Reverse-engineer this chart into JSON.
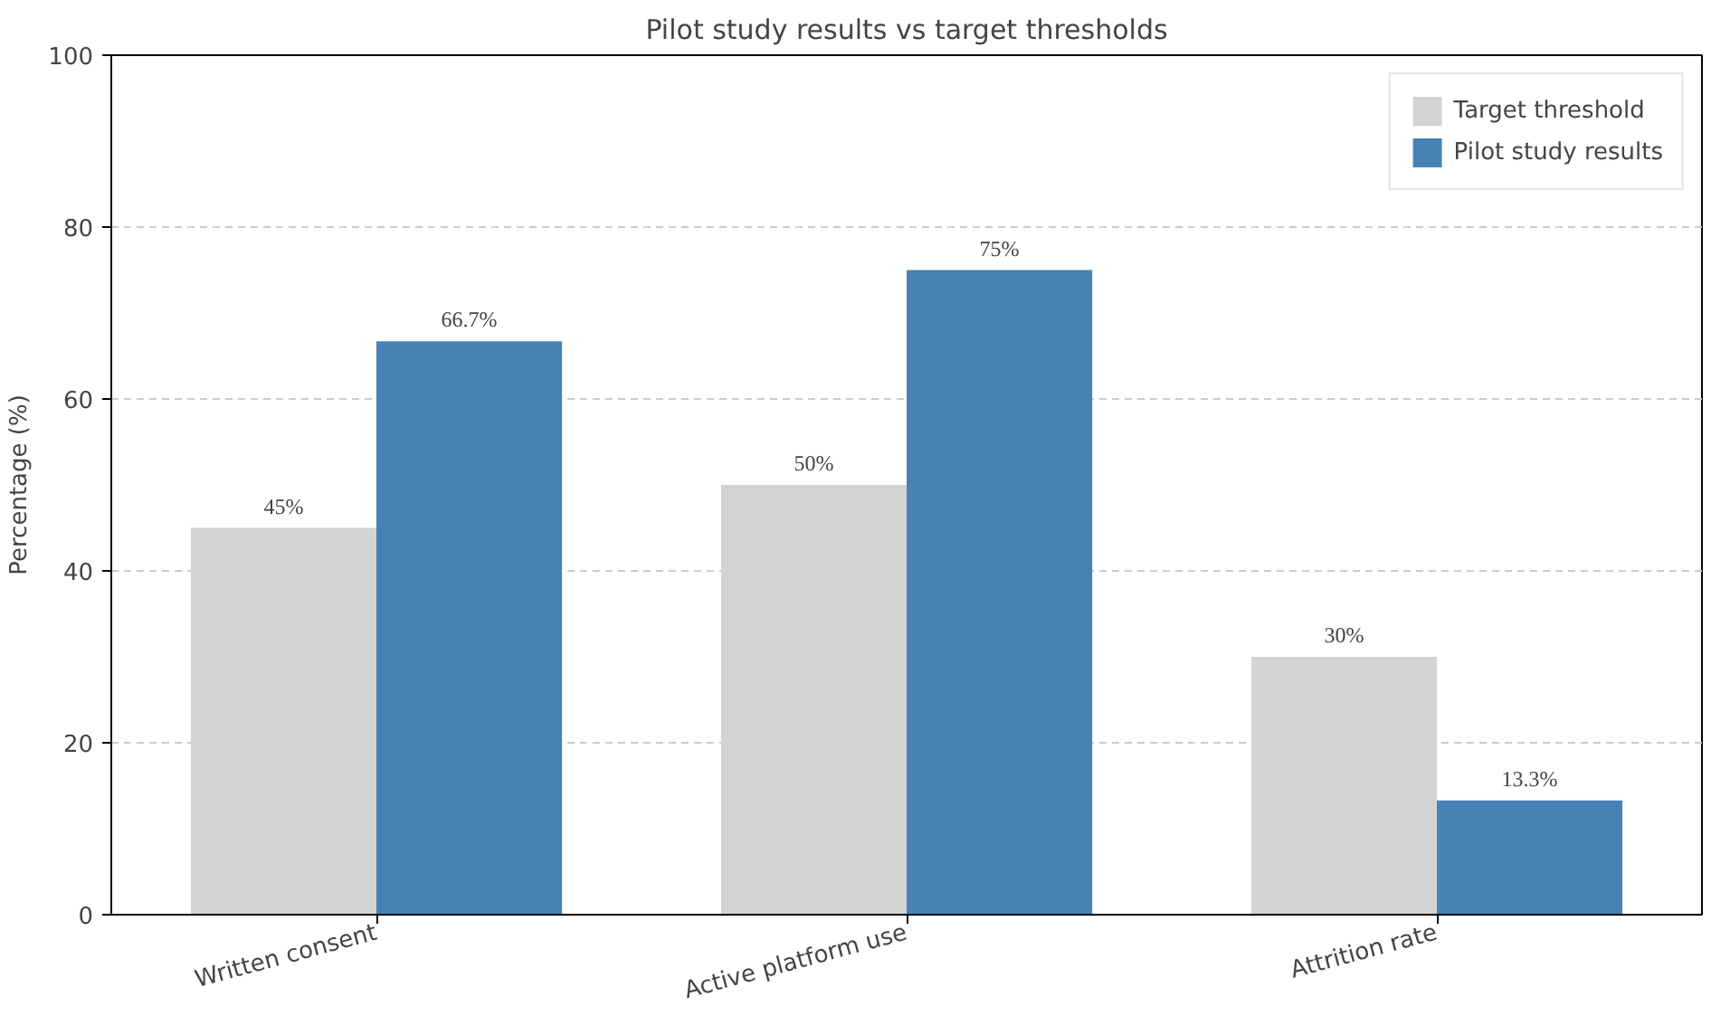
{
  "chart_data": {
    "type": "bar",
    "title": "Pilot study results vs target thresholds",
    "ylabel": "Percentage (%)",
    "categories": [
      "Written consent",
      "Active platform use",
      "Attrition rate"
    ],
    "series": [
      {
        "name": "Target threshold",
        "color": "#d3d3d3",
        "values": [
          45,
          50,
          30
        ],
        "value_labels": [
          "45%",
          "50%",
          "30%"
        ]
      },
      {
        "name": "Pilot study results",
        "color": "#4682b4",
        "values": [
          66.7,
          75,
          13.3
        ],
        "value_labels": [
          "66.7%",
          "75%",
          "13.3%"
        ]
      }
    ],
    "ylim": [
      0,
      100
    ],
    "yticks": [
      0,
      20,
      40,
      60,
      80,
      100
    ],
    "grid": "y",
    "legend": "top right"
  }
}
